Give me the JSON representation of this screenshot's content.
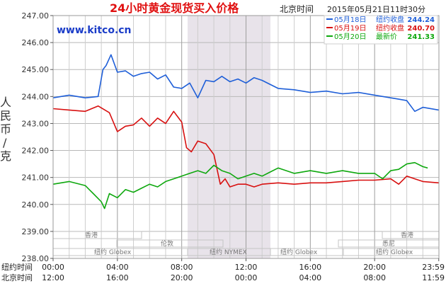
{
  "header": {
    "title": "24小时黄金现货买入价格",
    "time_label": "北京时间",
    "timestamp": "2015年05月21日11时30分",
    "watermark": "www.kitco.cn"
  },
  "legend": [
    {
      "date_label": "05月18日",
      "kind": "纽约收盘",
      "value": "244.24",
      "color": "#1f5fd8"
    },
    {
      "date_label": "05月19日",
      "kind": "纽约收盘",
      "value": "240.70",
      "color": "#d81010"
    },
    {
      "date_label": "05月20日",
      "kind": "最新价",
      "value": "241.33",
      "color": "#0ea80e"
    }
  ],
  "y_axis": {
    "label": "人民币/克",
    "ticks": [
      "247.00",
      "246.00",
      "245.00",
      "244.00",
      "243.00",
      "242.00",
      "241.00",
      "240.00",
      "239.00",
      "238.00"
    ]
  },
  "x_axis": {
    "rows": [
      {
        "label": "纽约时间",
        "ticks": [
          "00:00",
          "04:00",
          "08:00",
          "12:00",
          "16:00",
          "20:00",
          "23:59"
        ]
      },
      {
        "label": "北京时间",
        "ticks": [
          "12:00",
          "16:00",
          "20:00",
          "00:00",
          "04:00",
          "08:00",
          "11:59"
        ]
      }
    ]
  },
  "sessions": {
    "hongkong_1": "香港",
    "hongkong_2": "香港",
    "london": "伦敦",
    "newyork_globex_1": "纽约 Globex",
    "newyork_nymex": "纽约 NYMEX",
    "newyork_globex_2": "纽约 Globex",
    "newyork_globex_3": "纽约 Globex",
    "sydney": "悉尼"
  },
  "colors": {
    "grid": "#b8b8b8",
    "nymex_shade": "#e8e3ea",
    "title": "#e01010",
    "watermark": "#1a3cc8",
    "axis_text": "#333333"
  },
  "chart_data": {
    "type": "line",
    "title": "24小时黄金现货买入价格",
    "ylabel": "人民币/克",
    "ylim": [
      238,
      247
    ],
    "x_unit": "hours since 00:00 New York time",
    "xlim": [
      0,
      24
    ],
    "grid": true,
    "legend_position": "top-right",
    "series": [
      {
        "name": "05月18日 纽约收盘 244.24",
        "color": "#1f5fd8",
        "x": [
          0,
          1,
          2,
          2.8,
          3.1,
          3.3,
          3.6,
          4.0,
          4.5,
          5.0,
          5.5,
          6.0,
          6.5,
          7.0,
          7.5,
          8.0,
          8.5,
          9.0,
          9.5,
          10.0,
          10.5,
          11.0,
          11.5,
          12.0,
          12.5,
          13.0,
          14.0,
          15.0,
          16.0,
          17.0,
          18.0,
          19.0,
          20.0,
          21.0,
          21.5,
          22.0,
          22.5,
          23.0,
          23.99
        ],
        "y": [
          243.95,
          244.05,
          243.95,
          244.0,
          245.0,
          245.15,
          245.55,
          244.9,
          244.95,
          244.75,
          244.85,
          244.9,
          244.65,
          244.8,
          244.35,
          244.3,
          244.5,
          243.95,
          244.6,
          244.55,
          244.75,
          244.55,
          244.65,
          244.5,
          244.7,
          244.6,
          244.3,
          244.25,
          244.15,
          244.2,
          244.1,
          244.15,
          244.05,
          243.95,
          243.9,
          243.85,
          243.45,
          243.6,
          243.5
        ]
      },
      {
        "name": "05月19日 纽约收盘 240.70",
        "color": "#d81010",
        "x": [
          0,
          1,
          2,
          2.8,
          3.5,
          4.0,
          4.5,
          5.0,
          5.5,
          6.0,
          6.5,
          7.0,
          7.5,
          8.0,
          8.3,
          8.6,
          9.0,
          9.5,
          10.0,
          10.4,
          10.7,
          11.0,
          11.5,
          12.0,
          12.5,
          13.0,
          14.0,
          15.0,
          16.0,
          17.0,
          18.0,
          19.0,
          20.0,
          21.0,
          21.5,
          22.0,
          22.5,
          23.0,
          23.99
        ],
        "y": [
          243.55,
          243.5,
          243.45,
          243.65,
          243.4,
          242.7,
          242.9,
          242.95,
          243.2,
          242.9,
          243.2,
          243.0,
          243.45,
          243.05,
          242.1,
          241.95,
          242.35,
          242.25,
          241.85,
          240.75,
          240.95,
          240.65,
          240.75,
          240.75,
          240.65,
          240.75,
          240.8,
          240.75,
          240.8,
          240.8,
          240.85,
          240.9,
          240.9,
          240.95,
          240.75,
          241.05,
          240.95,
          240.85,
          240.8
        ]
      },
      {
        "name": "05月20日 最新价 241.33",
        "color": "#0ea80e",
        "x": [
          0,
          1,
          2,
          2.5,
          3.0,
          3.2,
          3.5,
          4.0,
          4.5,
          5.0,
          5.5,
          6.0,
          6.5,
          7.0,
          7.5,
          8.0,
          8.5,
          9.0,
          9.5,
          10.0,
          10.5,
          11.0,
          11.5,
          12.0,
          12.5,
          13.0,
          14.0,
          15.0,
          16.0,
          17.0,
          18.0,
          19.0,
          20.0,
          20.5,
          21.0,
          21.5,
          22.0,
          22.5,
          23.0,
          23.3
        ],
        "y": [
          240.75,
          240.85,
          240.7,
          240.4,
          240.1,
          239.85,
          240.4,
          240.25,
          240.55,
          240.45,
          240.6,
          240.75,
          240.65,
          240.85,
          240.95,
          241.05,
          241.15,
          241.25,
          241.15,
          241.45,
          241.25,
          241.15,
          240.95,
          241.05,
          241.15,
          241.05,
          241.35,
          241.15,
          241.25,
          241.15,
          241.25,
          241.15,
          241.15,
          240.95,
          241.25,
          241.3,
          241.5,
          241.55,
          241.4,
          241.35
        ]
      }
    ]
  }
}
